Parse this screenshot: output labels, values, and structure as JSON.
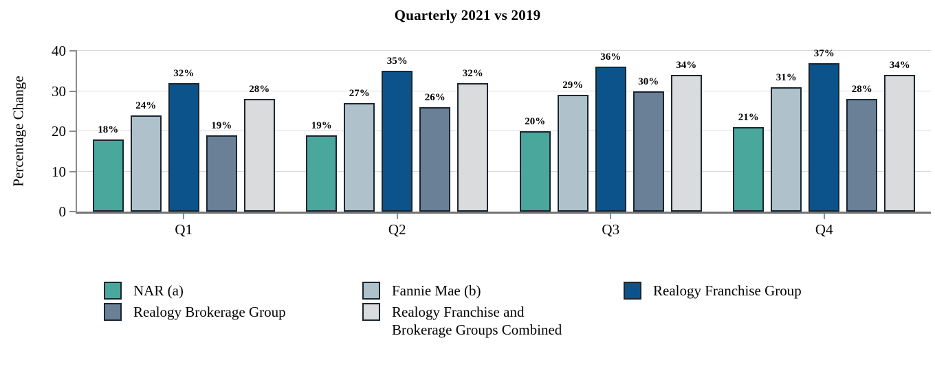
{
  "chart_data": {
    "type": "bar",
    "title": "Quarterly 2021 vs 2019",
    "xlabel": "",
    "ylabel": "Percentage Change",
    "categories": [
      "Q1",
      "Q2",
      "Q3",
      "Q4"
    ],
    "series": [
      {
        "name": "NAR (a)",
        "color": "#4aa79c",
        "values": [
          18,
          19,
          20,
          21
        ]
      },
      {
        "name": "Fannie Mae (b)",
        "color": "#afc2cc",
        "values": [
          24,
          27,
          29,
          31
        ]
      },
      {
        "name": "Realogy Franchise Group",
        "color": "#0b538a",
        "values": [
          32,
          35,
          36,
          37
        ]
      },
      {
        "name": "Realogy Brokerage Group",
        "color": "#6a8097",
        "values": [
          19,
          26,
          30,
          28
        ]
      },
      {
        "name": "Realogy Franchise and Brokerage Groups Combined",
        "color": "#d9dbdc",
        "values": [
          28,
          32,
          34,
          34
        ]
      }
    ],
    "value_suffix": "%",
    "ylim": [
      0,
      40
    ],
    "yticks": [
      0,
      10,
      20,
      30,
      40
    ],
    "grid": true,
    "legend_position": "bottom"
  },
  "legend": {
    "columns": [
      {
        "items": [
          {
            "label": "NAR (a)",
            "color": "#4aa79c"
          },
          {
            "label": "Realogy Brokerage Group",
            "color": "#6a8097"
          }
        ]
      },
      {
        "items": [
          {
            "label": "Fannie Mae (b)",
            "color": "#afc2cc"
          },
          {
            "label": "Realogy Franchise and Brokerage Groups Combined",
            "color": "#d9dbdc"
          }
        ]
      },
      {
        "items": [
          {
            "label": "Realogy Franchise Group",
            "color": "#0b538a"
          }
        ]
      }
    ]
  },
  "colors": {
    "gridline": "#d9d9d9",
    "axis": "#8c8c8c",
    "x_axis": "#737373",
    "bar_border": "#1a2530",
    "text": "#000000",
    "background": "#ffffff"
  }
}
